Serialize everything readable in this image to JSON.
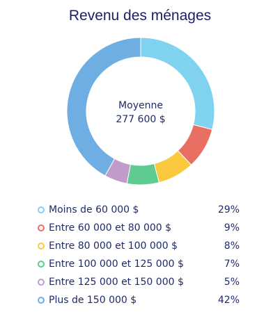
{
  "chart_data": {
    "type": "pie",
    "title": "Revenu des ménages",
    "center_label": "Moyenne",
    "center_value": "277 600 $",
    "categories": [
      "Moins de 60 000 $",
      "Entre 60 000 et 80 000 $",
      "Entre 80 000 et 100 000 $",
      "Entre 100 000 et 125 000 $",
      "Entre 125 000 et 150 000 $",
      "Plus de 150 000 $"
    ],
    "values": [
      29,
      9,
      8,
      7,
      5,
      42
    ],
    "value_labels": [
      "29%",
      "9%",
      "8%",
      "7%",
      "5%",
      "42%"
    ],
    "colors": [
      "#7fd3ee",
      "#ea6f63",
      "#fbc93d",
      "#5fcb93",
      "#c09ccb",
      "#6faee3"
    ],
    "legend_placement": "bottom"
  }
}
